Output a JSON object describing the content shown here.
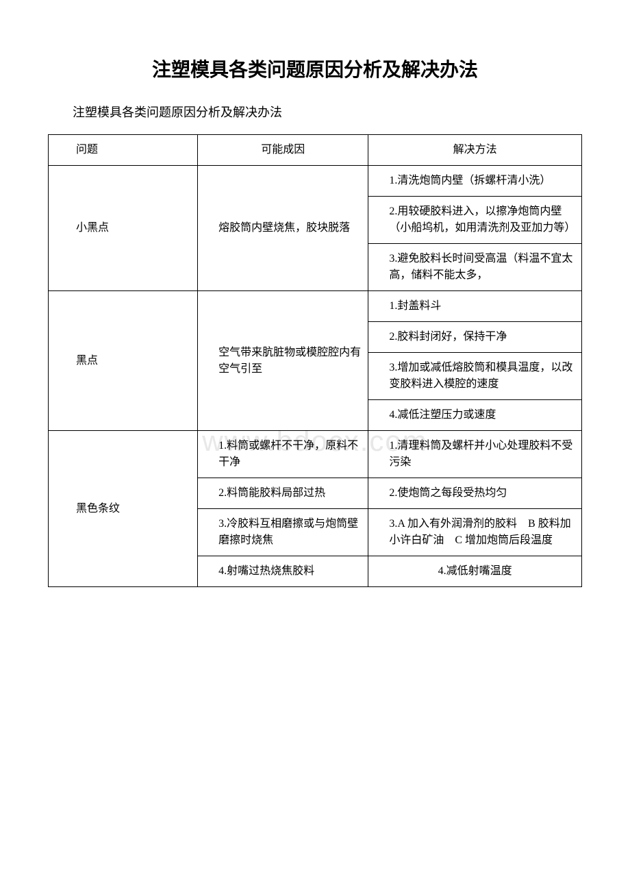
{
  "title": "注塑模具各类问题原因分析及解决办法",
  "subtitle": "注塑模具各类问题原因分析及解决办法",
  "watermark": "www.bdocx.com",
  "headers": {
    "problem": "问题",
    "cause": "可能成因",
    "solution": "解决方法"
  },
  "rows": [
    {
      "problem": "小黑点",
      "cause": "熔胶筒内壁烧焦，胶块脱落",
      "solutions": [
        "1.清洗炮筒内壁（拆螺杆清小洗）",
        "2.用较硬胶料进入，以擦净炮筒内壁（小船坞机，如用清洗剂及亚加力等）",
        "3.避免胶料长时间受高温（料温不宜太高，储料不能太多，"
      ]
    },
    {
      "problem": "黑点",
      "cause": "空气带来肮脏物或模腔腔内有空气引至",
      "solutions": [
        "1.封盖料斗",
        "2.胶料封闭好，保持干净",
        "3.增加或减低熔胶筒和模具温度，以改变胶料进入模腔的速度",
        "4.减低注塑压力或速度"
      ]
    },
    {
      "problem": "黑色条纹",
      "causes": [
        "1.料筒或螺杆不干净，原料不干净",
        "2.料筒能胶料局部过热",
        "3.冷胶料互相磨擦或与炮筒壁磨擦时烧焦",
        "4.射嘴过热烧焦胶料"
      ],
      "solutions": [
        "1.清理料筒及螺杆并小心处理胶料不受污染",
        "2.使炮筒之每段受热均匀",
        "3.A 加入有外润滑剂的胶料　B 胶料加小许白矿油　C 增加炮筒后段温度",
        "4.减低射嘴温度"
      ]
    }
  ]
}
